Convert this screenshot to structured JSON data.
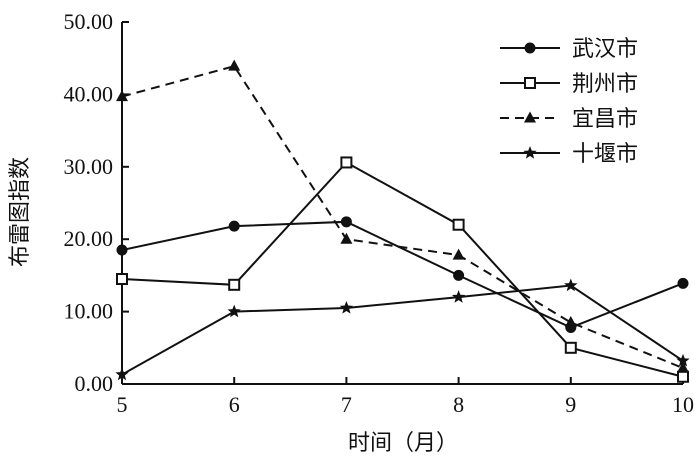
{
  "chart_data": {
    "type": "line",
    "title": "",
    "xlabel": "时间（月）",
    "ylabel": "布雷图指数",
    "x": [
      5,
      6,
      7,
      8,
      9,
      10
    ],
    "xlim": [
      5,
      10
    ],
    "ylim": [
      0,
      50
    ],
    "x_ticks": [
      "5",
      "6",
      "7",
      "8",
      "9",
      "10"
    ],
    "y_ticks": [
      "0.00",
      "10.00",
      "20.00",
      "30.00",
      "40.00",
      "50.00"
    ],
    "grid": false,
    "legend_position": "top-right",
    "series": [
      {
        "name": "武汉市",
        "values": [
          18.5,
          21.8,
          22.4,
          15.0,
          7.8,
          13.9
        ],
        "marker": "filled-circle",
        "line": "solid",
        "color": "#111111"
      },
      {
        "name": "荆州市",
        "values": [
          14.5,
          13.7,
          30.6,
          22.0,
          5.0,
          1.0
        ],
        "marker": "open-square",
        "line": "solid",
        "color": "#111111"
      },
      {
        "name": "宜昌市",
        "values": [
          39.7,
          43.9,
          20.0,
          17.8,
          8.5,
          2.2
        ],
        "marker": "filled-triangle",
        "line": "dashed",
        "color": "#111111"
      },
      {
        "name": "十堰市",
        "values": [
          1.3,
          10.0,
          10.5,
          12.0,
          13.6,
          3.2
        ],
        "marker": "star",
        "line": "solid",
        "color": "#111111"
      }
    ]
  }
}
